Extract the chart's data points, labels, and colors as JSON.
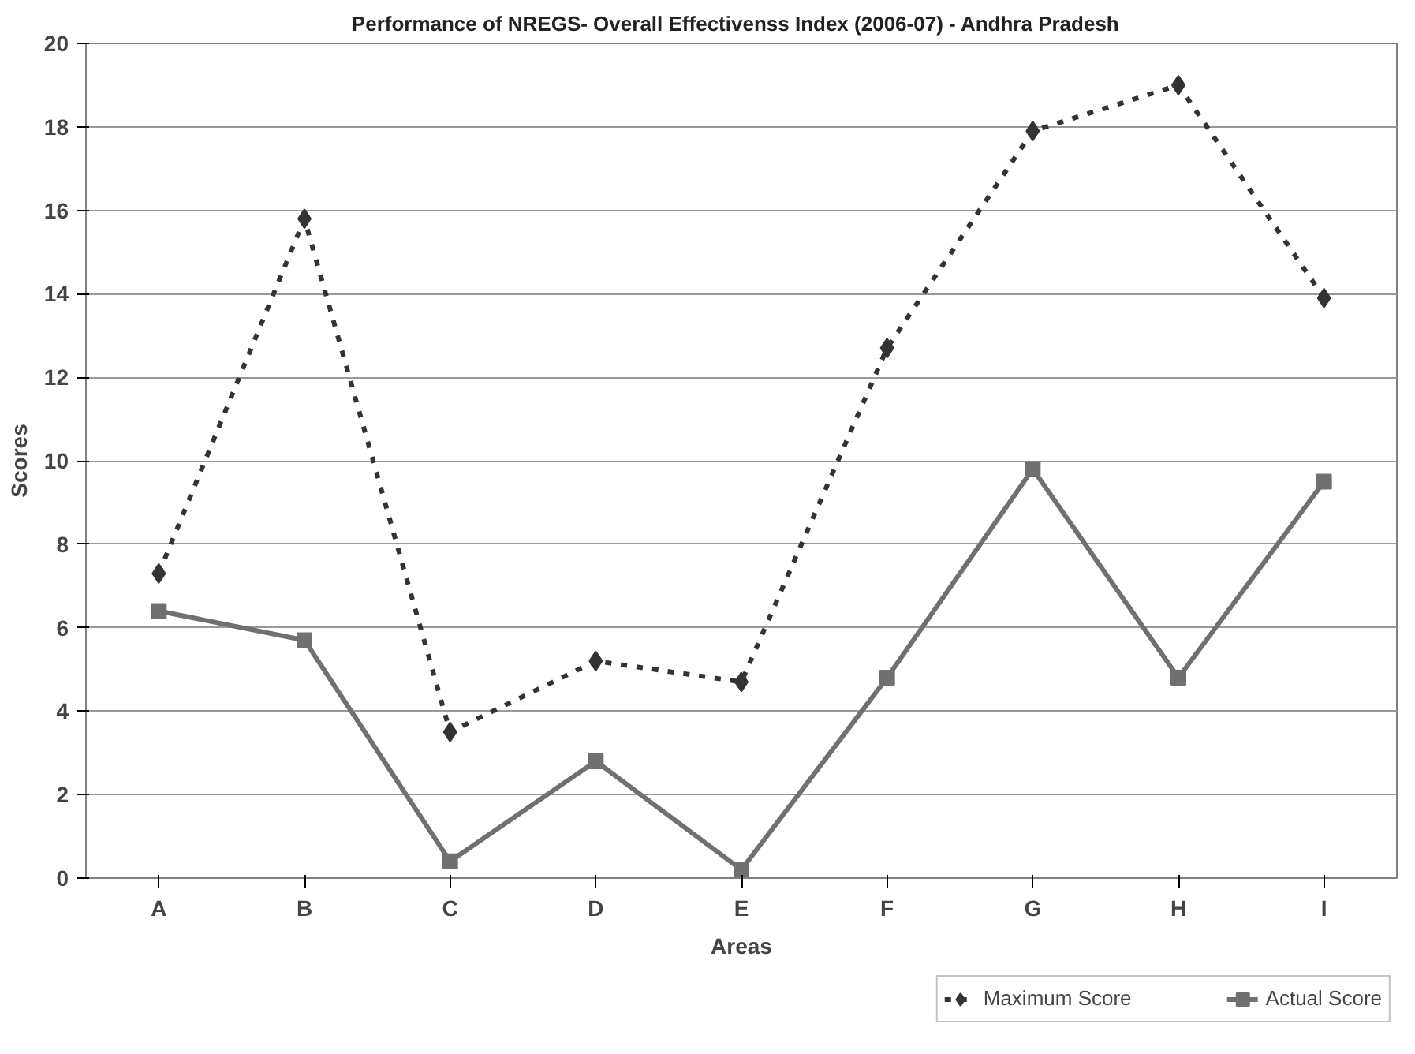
{
  "chart_data": {
    "type": "line",
    "title": "Performance of NREGS- Overall Effectivenss Index (2006-07) -   Andhra Pradesh",
    "xlabel": "Areas",
    "ylabel": "Scores",
    "categories": [
      "A",
      "B",
      "C",
      "D",
      "E",
      "F",
      "G",
      "H",
      "I"
    ],
    "series": [
      {
        "name": "Maximum Score",
        "color": "#333333",
        "marker": "diamond",
        "line_style": "dashed",
        "values": [
          7.3,
          15.8,
          3.5,
          5.2,
          4.7,
          12.7,
          17.9,
          19.0,
          13.9
        ]
      },
      {
        "name": "Actual Score",
        "color": "#707070",
        "marker": "square",
        "line_style": "solid",
        "values": [
          6.4,
          5.7,
          0.4,
          2.8,
          0.2,
          4.8,
          9.8,
          4.8,
          9.5
        ]
      }
    ],
    "ylim": [
      0,
      20
    ],
    "yticks": [
      0,
      2,
      4,
      6,
      8,
      10,
      12,
      14,
      16,
      18,
      20
    ],
    "grid": "y",
    "legend": "bottom right"
  }
}
